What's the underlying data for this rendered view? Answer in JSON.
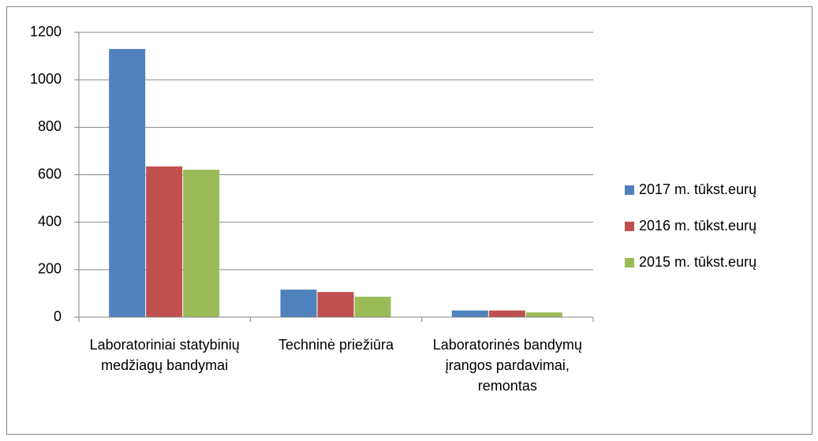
{
  "chart_data": {
    "type": "bar",
    "categories": [
      "Laboratoriniai statybinių medžiagų bandymai",
      "Techninė priežiūra",
      "Laboratorinės bandymų įrangos pardavimai, remontas"
    ],
    "series": [
      {
        "name": "2017 m. tūkst.eurų",
        "color": "#4f81bd",
        "values": [
          1130,
          116,
          28
        ]
      },
      {
        "name": "2016 m. tūkst.eurų",
        "color": "#c0504d",
        "values": [
          635,
          106,
          28
        ]
      },
      {
        "name": "2015 m. tūkst.eurų",
        "color": "#9bbb59",
        "values": [
          621,
          86,
          20
        ]
      }
    ],
    "ylim": [
      0,
      1200
    ],
    "yticks": [
      0,
      200,
      400,
      600,
      800,
      1000,
      1200
    ],
    "grid": true,
    "legend": "right"
  }
}
